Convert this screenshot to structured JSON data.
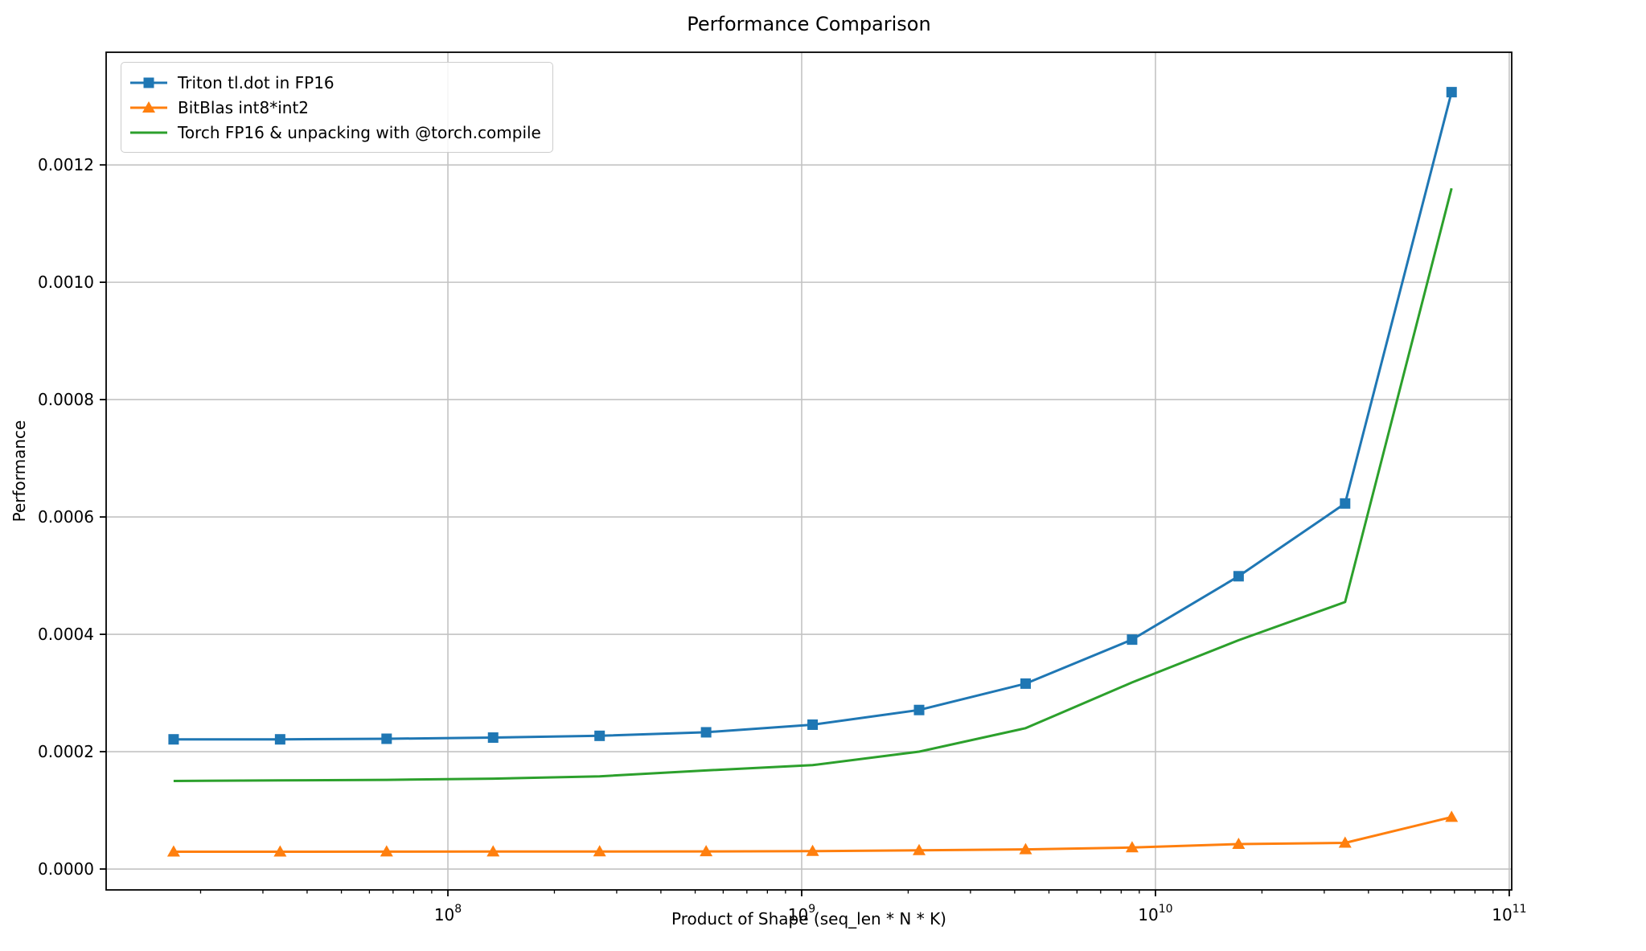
{
  "chart_data": {
    "type": "line",
    "title": "Performance Comparison",
    "xlabel": "Product of Shape (seq_len * N * K)",
    "ylabel": "Performance",
    "x_scale": "log",
    "grid": true,
    "legend_position": "upper-left",
    "background_color": "#ffffff",
    "grid_color": "#c3c3c3",
    "spine_color": "#000000",
    "x_log_range": [
      7.034,
      11.007
    ],
    "y_range": [
      -3.56e-05,
      0.001392
    ],
    "x_major_ticks": [
      100000000,
      1000000000,
      10000000000,
      100000000000
    ],
    "y_ticks": [
      0.0,
      0.0002,
      0.0004,
      0.0006,
      0.0008,
      0.001,
      0.0012
    ],
    "x": [
      16777216,
      33554432,
      67108864,
      134217728,
      268435456,
      536870912,
      1073741824,
      2147483648,
      4294967296,
      8589934592,
      17179869184,
      34359738368,
      68719476736
    ],
    "series": [
      {
        "name": "Triton tl.dot in FP16",
        "color": "#1f77b4",
        "marker": "square",
        "values": [
          0.000221,
          0.000221,
          0.000222,
          0.000224,
          0.000227,
          0.000233,
          0.000246,
          0.000271,
          0.000316,
          0.000391,
          0.000499,
          0.000623,
          0.001324
        ]
      },
      {
        "name": "BitBlas int8*int2",
        "color": "#ff7f0e",
        "marker": "triangle",
        "values": [
          2.95e-05,
          2.95e-05,
          2.96e-05,
          2.97e-05,
          2.98e-05,
          3e-05,
          3.05e-05,
          3.18e-05,
          3.35e-05,
          3.66e-05,
          4.25e-05,
          4.45e-05,
          8.85e-05
        ]
      },
      {
        "name": "Torch FP16 & unpacking with @torch.compile",
        "color": "#2ca02c",
        "marker": "none",
        "values": [
          0.00015,
          0.000151,
          0.000152,
          0.000154,
          0.000158,
          0.000168,
          0.000177,
          0.0002,
          0.00024,
          0.000318,
          0.00039,
          0.000455,
          0.00116
        ]
      }
    ]
  }
}
